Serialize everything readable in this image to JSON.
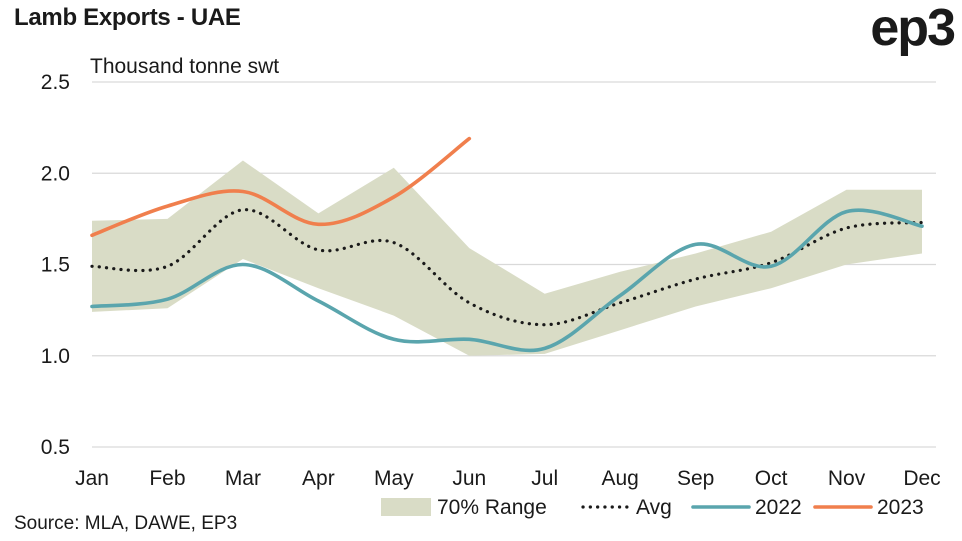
{
  "header": {
    "title": "Lamb Exports - UAE",
    "logo": "ep3"
  },
  "footer": {
    "source": "Source: MLA, DAWE, EP3"
  },
  "colors": {
    "range": "#d9dcc6",
    "avg": "#1a1a1a",
    "y2022": "#5aa5ad",
    "y2023": "#f07f4d",
    "grid": "#d9d9d9",
    "text": "#1a1a1a"
  },
  "chart_data": {
    "type": "line",
    "title": "Lamb Exports - UAE",
    "ylabel": "Thousand tonne swt",
    "ylim": [
      0.5,
      2.5
    ],
    "yticks": [
      0.5,
      1.0,
      1.5,
      2.0,
      2.5
    ],
    "ytick_labels": [
      "0.5",
      "1.0",
      "1.5",
      "2.0",
      "2.5"
    ],
    "grid": "horizontal",
    "legend_position": "bottom-right",
    "categories": [
      "Jan",
      "Feb",
      "Mar",
      "Apr",
      "May",
      "Jun",
      "Jul",
      "Aug",
      "Sep",
      "Oct",
      "Nov",
      "Dec"
    ],
    "range": {
      "name": "70% Range",
      "upper": [
        1.74,
        1.75,
        2.07,
        1.78,
        2.03,
        1.59,
        1.34,
        1.46,
        1.56,
        1.68,
        1.91,
        1.91
      ],
      "lower": [
        1.24,
        1.26,
        1.53,
        1.37,
        1.22,
        1.0,
        1.01,
        1.14,
        1.27,
        1.37,
        1.5,
        1.56
      ]
    },
    "series": [
      {
        "name": "Avg",
        "style": "dotted",
        "values": [
          1.49,
          1.49,
          1.8,
          1.58,
          1.62,
          1.29,
          1.17,
          1.29,
          1.42,
          1.51,
          1.7,
          1.73
        ]
      },
      {
        "name": "2022",
        "style": "solid",
        "values": [
          1.27,
          1.31,
          1.5,
          1.3,
          1.09,
          1.09,
          1.04,
          1.33,
          1.61,
          1.49,
          1.79,
          1.71
        ]
      },
      {
        "name": "2023",
        "style": "solid",
        "values": [
          1.66,
          1.82,
          1.9,
          1.72,
          1.87,
          2.19,
          null,
          null,
          null,
          null,
          null,
          null
        ]
      }
    ]
  }
}
